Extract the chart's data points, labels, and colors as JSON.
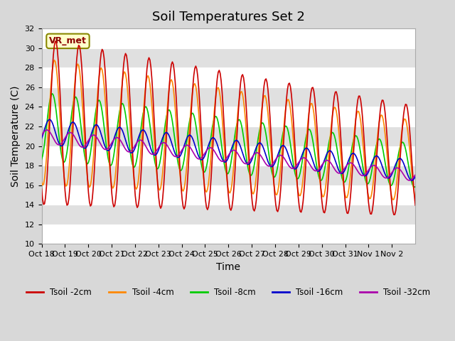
{
  "title": "Soil Temperatures Set 2",
  "xlabel": "Time",
  "ylabel": "Soil Temperature (C)",
  "ylim": [
    10,
    32
  ],
  "yticks": [
    10,
    12,
    14,
    16,
    18,
    20,
    22,
    24,
    26,
    28,
    30,
    32
  ],
  "xtick_labels": [
    "Oct 18",
    "Oct 19",
    "Oct 20",
    "Oct 21",
    "Oct 22",
    "Oct 23",
    "Oct 24",
    "Oct 25",
    "Oct 26",
    "Oct 27",
    "Oct 28",
    "Oct 29",
    "Oct 30",
    "Oct 31",
    "Nov 1",
    "Nov 2"
  ],
  "colors": {
    "tsoil_2cm": "#cc0000",
    "tsoil_4cm": "#ff8800",
    "tsoil_8cm": "#00cc00",
    "tsoil_16cm": "#0000cc",
    "tsoil_32cm": "#aa00aa"
  },
  "legend_labels": [
    "Tsoil -2cm",
    "Tsoil -4cm",
    "Tsoil -8cm",
    "Tsoil -16cm",
    "Tsoil -32cm"
  ],
  "annotation_text": "VR_met",
  "plot_bg_color": "#e8e8e8",
  "title_fontsize": 13,
  "axis_fontsize": 10,
  "tick_fontsize": 8
}
